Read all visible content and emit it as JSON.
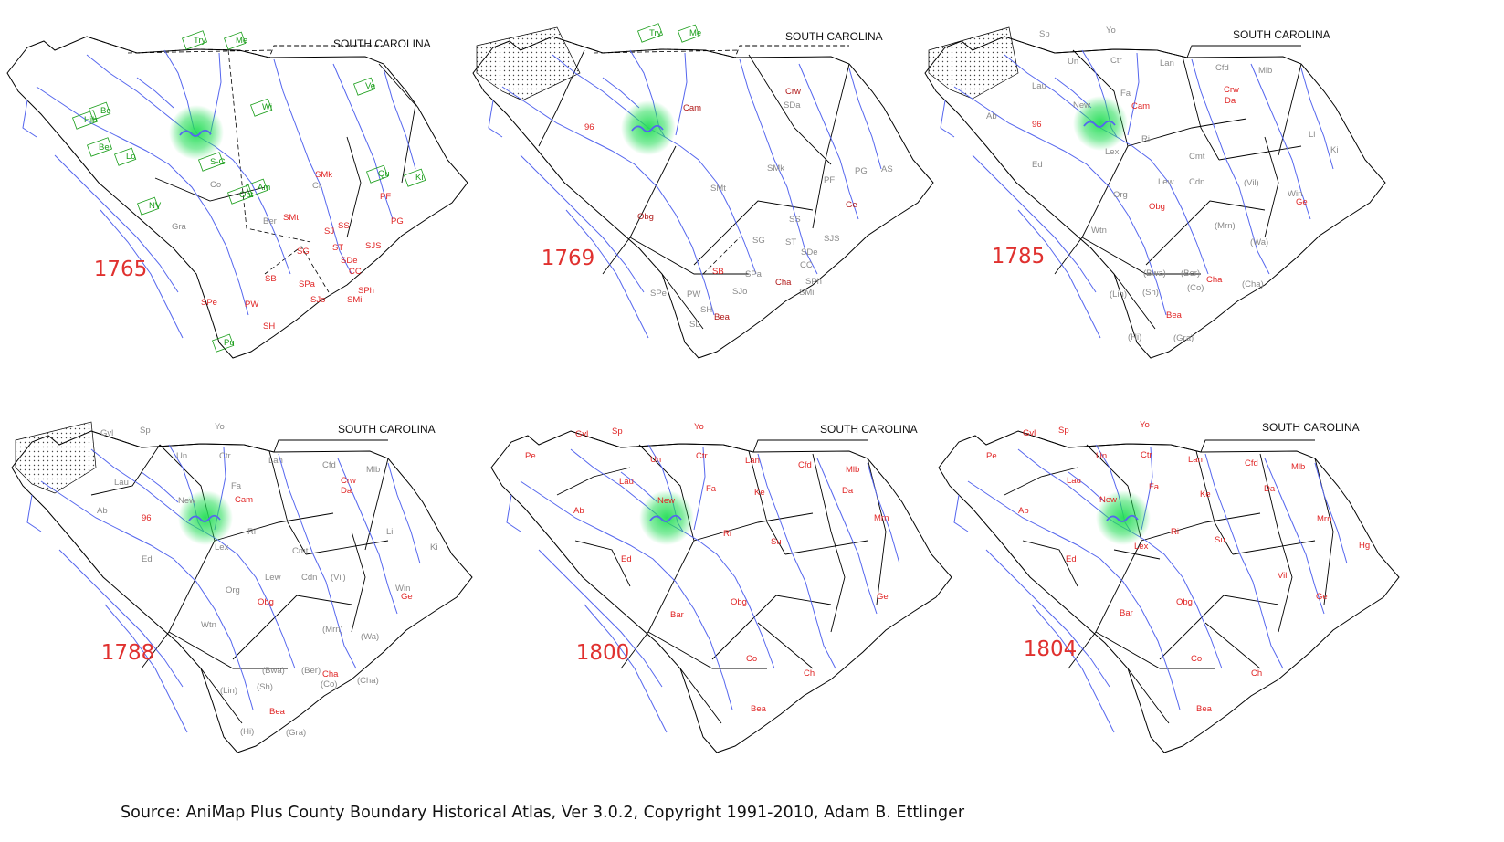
{
  "state_name": "SOUTH CAROLINA",
  "source": "Source: AniMap Plus County Boundary Historical Atlas, Ver 3.0.2, Copyright 1991-2010, Adam B. Ettlinger",
  "colors": {
    "river": "#5566ee",
    "county_line": "#000000",
    "old_line": "#999999",
    "year_label": "#e0312f",
    "highlight": "#22dd55",
    "county_label": "#e02525",
    "old_label": "#8a8a8a",
    "green_label": "#1a9e1a"
  },
  "maps": [
    {
      "year": "1765",
      "labels": [
        {
          "t": "Try",
          "c": "green"
        },
        {
          "t": "Me",
          "c": "green"
        },
        {
          "t": "Bo",
          "c": "green"
        },
        {
          "t": "Hib",
          "c": "green"
        },
        {
          "t": "Bel",
          "c": "green"
        },
        {
          "t": "Lo",
          "c": "green"
        },
        {
          "t": "S-G",
          "c": "green"
        },
        {
          "t": "Am",
          "c": "green"
        },
        {
          "t": "Obt",
          "c": "green"
        },
        {
          "t": "Ve",
          "c": "green"
        },
        {
          "t": "Qu",
          "c": "green"
        },
        {
          "t": "Ki",
          "c": "green"
        },
        {
          "t": "NV",
          "c": "green"
        },
        {
          "t": "Pu",
          "c": "green"
        },
        {
          "t": "Wi",
          "c": "green"
        },
        {
          "t": "SMk",
          "c": "new"
        },
        {
          "t": "Cr",
          "c": "old"
        },
        {
          "t": "PF",
          "c": "new"
        },
        {
          "t": "Co",
          "c": "old"
        },
        {
          "t": "Ber",
          "c": "old"
        },
        {
          "t": "SMt",
          "c": "new"
        },
        {
          "t": "SS",
          "c": "new"
        },
        {
          "t": "PG",
          "c": "new"
        },
        {
          "t": "Gra",
          "c": "old"
        },
        {
          "t": "SJ",
          "c": "new"
        },
        {
          "t": "ST",
          "c": "new"
        },
        {
          "t": "SJS",
          "c": "new"
        },
        {
          "t": "SG",
          "c": "new"
        },
        {
          "t": "SDe",
          "c": "new"
        },
        {
          "t": "CC",
          "c": "new"
        },
        {
          "t": "SB",
          "c": "new"
        },
        {
          "t": "SPa",
          "c": "new"
        },
        {
          "t": "SPh",
          "c": "new"
        },
        {
          "t": "SJo",
          "c": "new"
        },
        {
          "t": "SMi",
          "c": "new"
        },
        {
          "t": "SPe",
          "c": "new"
        },
        {
          "t": "PW",
          "c": "new"
        },
        {
          "t": "SH",
          "c": "new"
        }
      ]
    },
    {
      "year": "1769",
      "labels": [
        {
          "t": "Try",
          "c": "green"
        },
        {
          "t": "Me",
          "c": "green"
        },
        {
          "t": "Crw",
          "c": "dark"
        },
        {
          "t": "SDa",
          "c": "old"
        },
        {
          "t": "Cam",
          "c": "dark"
        },
        {
          "t": "96",
          "c": "new"
        },
        {
          "t": "SMk",
          "c": "old"
        },
        {
          "t": "PF",
          "c": "old"
        },
        {
          "t": "PG",
          "c": "old"
        },
        {
          "t": "AS",
          "c": "old"
        },
        {
          "t": "SMt",
          "c": "old"
        },
        {
          "t": "Ge",
          "c": "dark"
        },
        {
          "t": "Obg",
          "c": "dark"
        },
        {
          "t": "SS",
          "c": "old"
        },
        {
          "t": "SG",
          "c": "old"
        },
        {
          "t": "ST",
          "c": "old"
        },
        {
          "t": "SJS",
          "c": "old"
        },
        {
          "t": "SDe",
          "c": "old"
        },
        {
          "t": "CC",
          "c": "old"
        },
        {
          "t": "SB",
          "c": "new"
        },
        {
          "t": "SPa",
          "c": "old"
        },
        {
          "t": "Cha",
          "c": "dark"
        },
        {
          "t": "SPh",
          "c": "old"
        },
        {
          "t": "SJo",
          "c": "old"
        },
        {
          "t": "SMi",
          "c": "old"
        },
        {
          "t": "SPe",
          "c": "old"
        },
        {
          "t": "PW",
          "c": "old"
        },
        {
          "t": "SH",
          "c": "old"
        },
        {
          "t": "SL",
          "c": "old"
        },
        {
          "t": "Bea",
          "c": "dark"
        }
      ]
    },
    {
      "year": "1785",
      "labels": [
        {
          "t": "Sp",
          "c": "old"
        },
        {
          "t": "Yo",
          "c": "old"
        },
        {
          "t": "Un",
          "c": "old"
        },
        {
          "t": "Ctr",
          "c": "old"
        },
        {
          "t": "Lan",
          "c": "old"
        },
        {
          "t": "Cfd",
          "c": "old"
        },
        {
          "t": "Mlb",
          "c": "old"
        },
        {
          "t": "Lau",
          "c": "old"
        },
        {
          "t": "Fa",
          "c": "old"
        },
        {
          "t": "Crw",
          "c": "new"
        },
        {
          "t": "Da",
          "c": "new"
        },
        {
          "t": "New",
          "c": "old"
        },
        {
          "t": "Cam",
          "c": "new"
        },
        {
          "t": "Ab",
          "c": "old"
        },
        {
          "t": "96",
          "c": "new"
        },
        {
          "t": "Ri",
          "c": "old"
        },
        {
          "t": "Li",
          "c": "old"
        },
        {
          "t": "Ki",
          "c": "old"
        },
        {
          "t": "Ed",
          "c": "old"
        },
        {
          "t": "Lex",
          "c": "old"
        },
        {
          "t": "Cmt",
          "c": "old"
        },
        {
          "t": "Lew",
          "c": "old"
        },
        {
          "t": "Cdn",
          "c": "old"
        },
        {
          "t": "(Vil)",
          "c": "old"
        },
        {
          "t": "Win",
          "c": "old"
        },
        {
          "t": "Ge",
          "c": "new"
        },
        {
          "t": "Org",
          "c": "old"
        },
        {
          "t": "Obg",
          "c": "new"
        },
        {
          "t": "Wtn",
          "c": "old"
        },
        {
          "t": "(Mrn)",
          "c": "old"
        },
        {
          "t": "(Wa)",
          "c": "old"
        },
        {
          "t": "(Bwa)",
          "c": "old"
        },
        {
          "t": "(Ber)",
          "c": "old"
        },
        {
          "t": "Cha",
          "c": "new"
        },
        {
          "t": "(Lin)",
          "c": "old"
        },
        {
          "t": "(Sh)",
          "c": "old"
        },
        {
          "t": "(Co)",
          "c": "old"
        },
        {
          "t": "(Cha)",
          "c": "old"
        },
        {
          "t": "Bea",
          "c": "new"
        },
        {
          "t": "(Hi)",
          "c": "old"
        },
        {
          "t": "(Gra)",
          "c": "old"
        }
      ]
    },
    {
      "year": "1788",
      "labels": [
        {
          "t": "Gvl",
          "c": "old"
        },
        {
          "t": "Sp",
          "c": "old"
        },
        {
          "t": "Yo",
          "c": "old"
        },
        {
          "t": "Un",
          "c": "old"
        },
        {
          "t": "Ctr",
          "c": "old"
        },
        {
          "t": "Lan",
          "c": "old"
        },
        {
          "t": "Cfd",
          "c": "old"
        },
        {
          "t": "Mlb",
          "c": "old"
        },
        {
          "t": "Lau",
          "c": "old"
        },
        {
          "t": "Fa",
          "c": "old"
        },
        {
          "t": "Crw",
          "c": "new"
        },
        {
          "t": "Da",
          "c": "new"
        },
        {
          "t": "New",
          "c": "old"
        },
        {
          "t": "Cam",
          "c": "new"
        },
        {
          "t": "Ab",
          "c": "old"
        },
        {
          "t": "96",
          "c": "new"
        },
        {
          "t": "Ri",
          "c": "old"
        },
        {
          "t": "Li",
          "c": "old"
        },
        {
          "t": "Ki",
          "c": "old"
        },
        {
          "t": "Ed",
          "c": "old"
        },
        {
          "t": "Lex",
          "c": "old"
        },
        {
          "t": "Cmt",
          "c": "old"
        },
        {
          "t": "Lew",
          "c": "old"
        },
        {
          "t": "Cdn",
          "c": "old"
        },
        {
          "t": "(Vil)",
          "c": "old"
        },
        {
          "t": "Win",
          "c": "old"
        },
        {
          "t": "Ge",
          "c": "new"
        },
        {
          "t": "Org",
          "c": "old"
        },
        {
          "t": "Obg",
          "c": "new"
        },
        {
          "t": "Wtn",
          "c": "old"
        },
        {
          "t": "(Mrn)",
          "c": "old"
        },
        {
          "t": "(Wa)",
          "c": "old"
        },
        {
          "t": "(Bwa)",
          "c": "old"
        },
        {
          "t": "(Ber)",
          "c": "old"
        },
        {
          "t": "Cha",
          "c": "new"
        },
        {
          "t": "(Lin)",
          "c": "old"
        },
        {
          "t": "(Sh)",
          "c": "old"
        },
        {
          "t": "(Co)",
          "c": "old"
        },
        {
          "t": "(Cha)",
          "c": "old"
        },
        {
          "t": "Bea",
          "c": "new"
        },
        {
          "t": "(Hi)",
          "c": "old"
        },
        {
          "t": "(Gra)",
          "c": "old"
        }
      ]
    },
    {
      "year": "1800",
      "labels": [
        {
          "t": "Gvl",
          "c": "new"
        },
        {
          "t": "Sp",
          "c": "new"
        },
        {
          "t": "Yo",
          "c": "new"
        },
        {
          "t": "Pe",
          "c": "new"
        },
        {
          "t": "Un",
          "c": "new"
        },
        {
          "t": "Ctr",
          "c": "new"
        },
        {
          "t": "Lan",
          "c": "new"
        },
        {
          "t": "Cfd",
          "c": "new"
        },
        {
          "t": "Mlb",
          "c": "new"
        },
        {
          "t": "Lau",
          "c": "new"
        },
        {
          "t": "Fa",
          "c": "new"
        },
        {
          "t": "Ke",
          "c": "new"
        },
        {
          "t": "Da",
          "c": "new"
        },
        {
          "t": "Ab",
          "c": "new"
        },
        {
          "t": "New",
          "c": "new"
        },
        {
          "t": "Mrn",
          "c": "new"
        },
        {
          "t": "Ri",
          "c": "new"
        },
        {
          "t": "Ed",
          "c": "new"
        },
        {
          "t": "Su",
          "c": "new"
        },
        {
          "t": "Ge",
          "c": "new"
        },
        {
          "t": "Obg",
          "c": "new"
        },
        {
          "t": "Bar",
          "c": "new"
        },
        {
          "t": "Co",
          "c": "new"
        },
        {
          "t": "Ch",
          "c": "new"
        },
        {
          "t": "Bea",
          "c": "new"
        }
      ]
    },
    {
      "year": "1804",
      "labels": [
        {
          "t": "Gvl",
          "c": "new"
        },
        {
          "t": "Sp",
          "c": "new"
        },
        {
          "t": "Yo",
          "c": "new"
        },
        {
          "t": "Pe",
          "c": "new"
        },
        {
          "t": "Un",
          "c": "new"
        },
        {
          "t": "Ctr",
          "c": "new"
        },
        {
          "t": "Lan",
          "c": "new"
        },
        {
          "t": "Cfd",
          "c": "new"
        },
        {
          "t": "Mlb",
          "c": "new"
        },
        {
          "t": "Lau",
          "c": "new"
        },
        {
          "t": "Fa",
          "c": "new"
        },
        {
          "t": "Ke",
          "c": "new"
        },
        {
          "t": "Da",
          "c": "new"
        },
        {
          "t": "Ab",
          "c": "new"
        },
        {
          "t": "New",
          "c": "new"
        },
        {
          "t": "Mrn",
          "c": "new"
        },
        {
          "t": "Ri",
          "c": "new"
        },
        {
          "t": "Hg",
          "c": "new"
        },
        {
          "t": "Ed",
          "c": "new"
        },
        {
          "t": "Lex",
          "c": "new"
        },
        {
          "t": "Su",
          "c": "new"
        },
        {
          "t": "Vil",
          "c": "new"
        },
        {
          "t": "Ge",
          "c": "new"
        },
        {
          "t": "Obg",
          "c": "new"
        },
        {
          "t": "Bar",
          "c": "new"
        },
        {
          "t": "Co",
          "c": "new"
        },
        {
          "t": "Ch",
          "c": "new"
        },
        {
          "t": "Bea",
          "c": "new"
        }
      ]
    }
  ]
}
